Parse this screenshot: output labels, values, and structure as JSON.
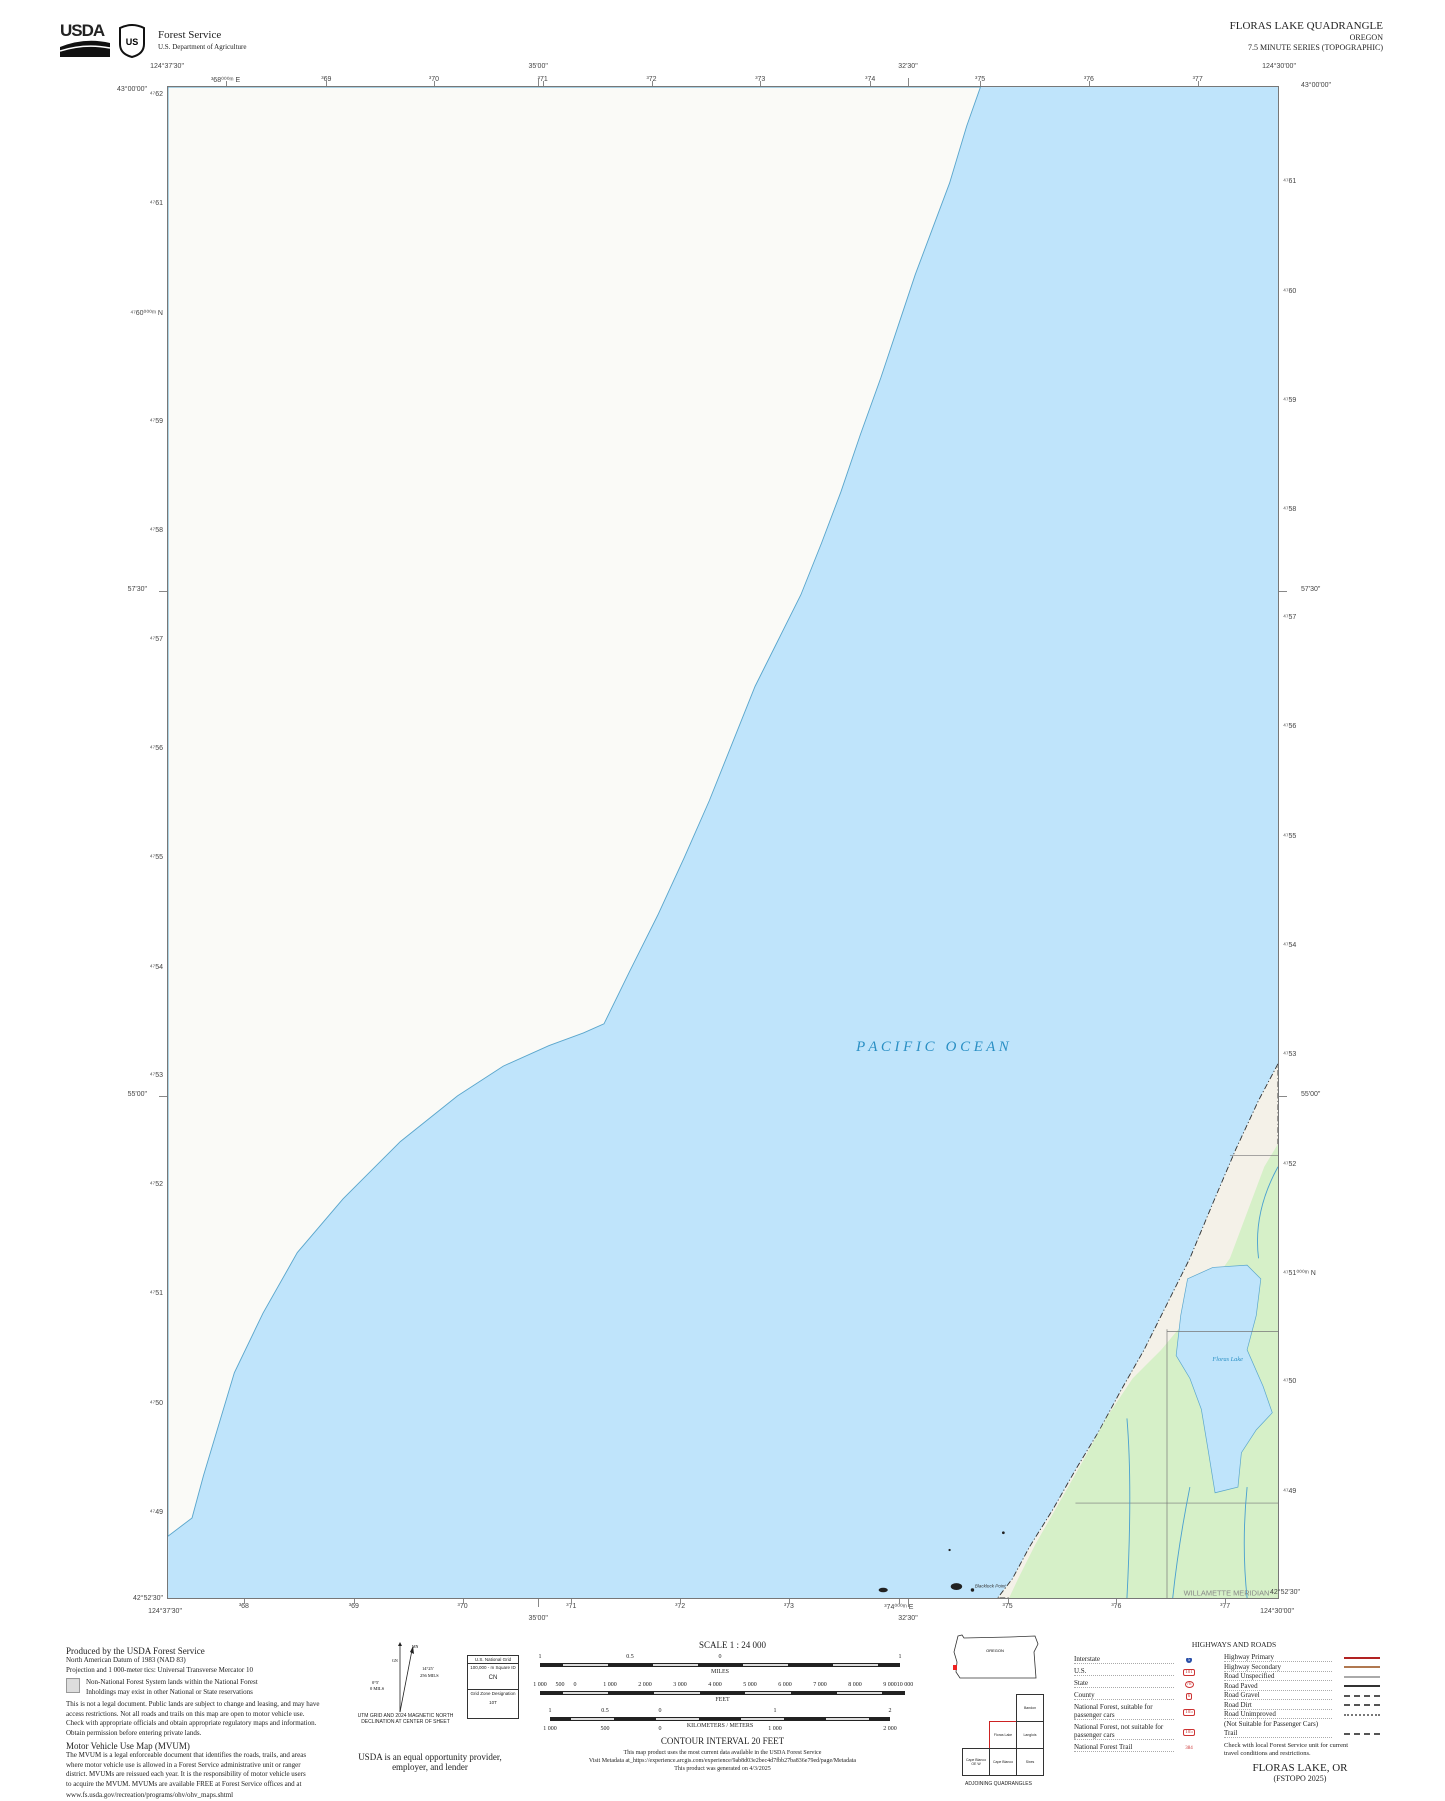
{
  "header": {
    "agency_logo": "USDA",
    "shield_logo": "USFS shield",
    "agency": "Forest Service",
    "department": "U.S. Department of Agriculture",
    "title": "FLORAS LAKE QUADRANGLE",
    "state": "OREGON",
    "series": "7.5 MINUTE SERIES (TOPOGRAPHIC)"
  },
  "map": {
    "water_label": "P A C I F I C   O C E A N",
    "lake_label": "Floras Lake",
    "meridian_label": "WILLAMETTE MERIDIAN",
    "point_label": "Blacklock Point",
    "colors": {
      "water": "#bfe4fb",
      "land": "#fafaf7",
      "vegetation": "#d6f0c8",
      "coast": "#5aa6cc"
    },
    "corner_labels": {
      "top_left_lon": "124°37'30\"",
      "top_right_lon": "124°30'00\"",
      "top_left_lat": "43°00'00\"",
      "top_right_lat": "43°00'00\"",
      "bottom_left_lat": "42°52'30\"",
      "bottom_left_lon": "124°37'30\"",
      "bottom_right_lat": "42°52'30\"",
      "bottom_right_lon": "124°30'00\""
    },
    "top_lon_ticks": [
      "35'00\"",
      "32'30\""
    ],
    "bottom_lon_ticks": [
      "35'00\"",
      "32'30\""
    ],
    "side_lat_ticks": [
      "57'30\"",
      "55'00\""
    ],
    "top_easting": [
      "³68⁰⁰⁰ᵐ E",
      "³69",
      "³70",
      "³71",
      "³72",
      "³73",
      "³74",
      "³75",
      "³76",
      "³77"
    ],
    "bottom_easting": [
      "³68",
      "³69",
      "³70",
      "³71",
      "³72",
      "³73",
      "³74⁰⁰⁰ᵐ E",
      "³75",
      "³76",
      "³77"
    ],
    "left_northing": [
      "⁴⁷62",
      "⁴⁷61",
      "⁴⁷60⁰⁰⁰ᵐ N",
      "⁴⁷59",
      "⁴⁷58",
      "⁴⁷57",
      "⁴⁷56",
      "⁴⁷55",
      "⁴⁷54",
      "⁴⁷53",
      "⁴⁷52",
      "⁴⁷51",
      "⁴⁷50",
      "⁴⁷49"
    ],
    "right_northing": [
      "⁴⁷61",
      "⁴⁷60",
      "⁴⁷59",
      "⁴⁷58",
      "⁴⁷57",
      "⁴⁷56",
      "⁴⁷55",
      "⁴⁷54",
      "⁴⁷53",
      "⁴⁷52",
      "⁴⁷51⁰⁰⁰ᵐ N",
      "⁴⁷50",
      "⁴⁷49"
    ]
  },
  "footer": {
    "produced_by": "Produced by the USDA Forest Service",
    "datum": "North American Datum of 1983 (NAD 83)",
    "projection": "Projection and 1 000-meter tics: Universal Transverse Mercator 10",
    "non_nf_legend": "Non-National Forest System lands within the National Forest",
    "inholdings": "Inholdings may exist in other National or State reservations",
    "legal": [
      "This is not a legal document. Public lands are subject to change and leasing, and may have",
      "access restrictions. Not all roads and trails on this map are open to motor vehicle use.",
      "Check with appropriate officials and obtain appropriate regulatory maps and information.",
      "Obtain permission before entering private lands."
    ],
    "mvum_title": "Motor Vehicle Use Map (MVUM)",
    "mvum_text": [
      "The MVUM is a legal enforceable document that identifies the roads, trails, and areas",
      "where motor vehicle use is allowed in a Forest Service administrative unit or ranger",
      "district. MVUMs are reissued each year. It is the responsibility of motor vehicle users",
      "to acquire the MVUM. MVUMs are available FREE at Forest Service offices and at",
      "www.fs.usda.gov/recreation/programs/ohv/ohv_maps.shtml"
    ],
    "declination": {
      "mn": "MN",
      "gn": "GN",
      "gn_angle": "0°5'",
      "gn_mils": "0 MILS",
      "mn_angle": "14°25'",
      "mn_mils": "256 MILS",
      "caption": [
        "UTM GRID AND 2024 MAGNETIC NORTH",
        "DECLINATION AT CENTER OF SHEET"
      ]
    },
    "grid_box": {
      "title": "U.S. National Grid",
      "sub": "100,000 - m Square ID",
      "square": "CN",
      "zone_title": "Grid Zone Designation",
      "zone": "10T"
    },
    "equal_opportunity": [
      "USDA is an equal opportunity provider,",
      "employer, and lender"
    ],
    "scale": {
      "title": "SCALE 1 : 24 000",
      "miles": [
        "1",
        "0.5",
        "0",
        "1"
      ],
      "miles_unit": "MILES",
      "feet": [
        "1 000",
        "500",
        "0",
        "1 000",
        "2 000",
        "3 000",
        "4 000",
        "5 000",
        "6 000",
        "7 000",
        "8 000",
        "9 000",
        "10 000"
      ],
      "feet_unit": "FEET",
      "km": [
        "1",
        "0.5",
        "0",
        "1",
        "2"
      ],
      "km_unit": "KILOMETERS",
      "meters": [
        "1 000",
        "500",
        "0",
        "1 000",
        "2 000"
      ],
      "meters_unit": "METERS"
    },
    "contour": "CONTOUR INTERVAL 20 FEET",
    "metadata": [
      "This map product uses the most current data available in the USDA Forest Service",
      "Visit Metadata at_https://experience.arcgis.com/experience/9ab8d03e2bec4d7fbb27ba836e79ed/page/Metadata",
      "This product was generated on 4/3/2025"
    ],
    "state_map_label": "OREGON",
    "adjoining": {
      "caption": "ADJOINING QUADRANGLES",
      "cells": [
        "Bandon",
        "Floras Lake",
        "Langlois",
        "Cape Blanco OE W",
        "Cape Blanco",
        "Sixes"
      ]
    },
    "highways": {
      "title": "HIGHWAYS AND ROADS",
      "left": [
        {
          "label": "Interstate",
          "symbol": "5"
        },
        {
          "label": "U.S.",
          "symbol": "101"
        },
        {
          "label": "State",
          "symbol": "78"
        },
        {
          "label": "County",
          "symbol": "6"
        },
        {
          "label": "National Forest, suitable for passenger cars",
          "symbol": "105"
        },
        {
          "label": "National Forest, not suitable for passenger cars",
          "symbol": "105"
        },
        {
          "label": "National Forest Trail",
          "symbol": "384"
        }
      ],
      "right": [
        {
          "label": "Highway Primary",
          "color": "#b22222",
          "style": "solid"
        },
        {
          "label": "Highway Secondary",
          "color": "#b07850",
          "style": "solid"
        },
        {
          "label": "Road Unspecified",
          "color": "#aaaaaa",
          "style": "solid"
        },
        {
          "label": "Road Paved",
          "color": "#333333",
          "style": "solid"
        },
        {
          "label": "Road Gravel",
          "color": "#555555",
          "style": "dashed"
        },
        {
          "label": "Road Dirt",
          "color": "#555555",
          "style": "dashed"
        },
        {
          "label": "Road Unimproved",
          "color": "#777777",
          "style": "dotted"
        },
        {
          "label": "(Not Suitable for Passenger Cars)",
          "color": "",
          "style": "none"
        },
        {
          "label": "Trail",
          "color": "#555555",
          "style": "dashed"
        }
      ],
      "note": [
        "Check with local Forest Service unit for current",
        "travel conditions and restrictions."
      ]
    },
    "sheet_name": "FLORAS LAKE, OR",
    "edition": "(FSTOPO 2025)"
  }
}
